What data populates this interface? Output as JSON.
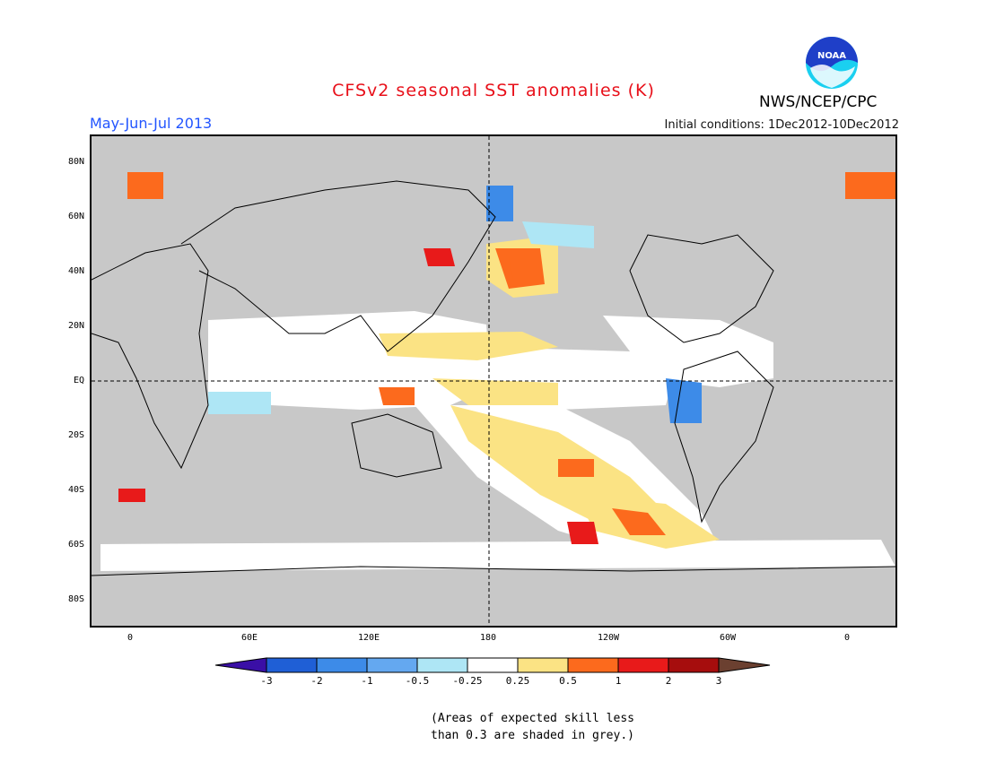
{
  "title": "CFSv2 seasonal SST anomalies (K)",
  "season": "May-Jun-Jul 2013",
  "initial_conditions": "Initial conditions: 1Dec2012-10Dec2012",
  "agency": "NWS/NCEP/CPC",
  "logo_text": "NOAA",
  "lat_labels": [
    "80N",
    "60N",
    "40N",
    "20N",
    "EQ",
    "20S",
    "40S",
    "60S",
    "80S"
  ],
  "lon_labels": [
    "0",
    "60E",
    "120E",
    "180",
    "120W",
    "60W",
    "0"
  ],
  "legend": {
    "labels": [
      "-3",
      "-2",
      "-1",
      "-0.5",
      "-0.25",
      "0.25",
      "0.5",
      "1",
      "2",
      "3"
    ],
    "colors": [
      "#3a0fa6",
      "#1f5fd6",
      "#3d8be8",
      "#64a8f0",
      "#aee6f5",
      "#ffffff",
      "#fbe384",
      "#fc6a1d",
      "#e81a1a",
      "#a60d0d",
      "#6b4030"
    ]
  },
  "note_line1": "(Areas of expected skill less",
  "note_line2": "than 0.3 are shaded in grey.)",
  "colors": {
    "grey_mask": "#c8c8c8",
    "title": "#e8101a",
    "season": "#2255ff"
  }
}
